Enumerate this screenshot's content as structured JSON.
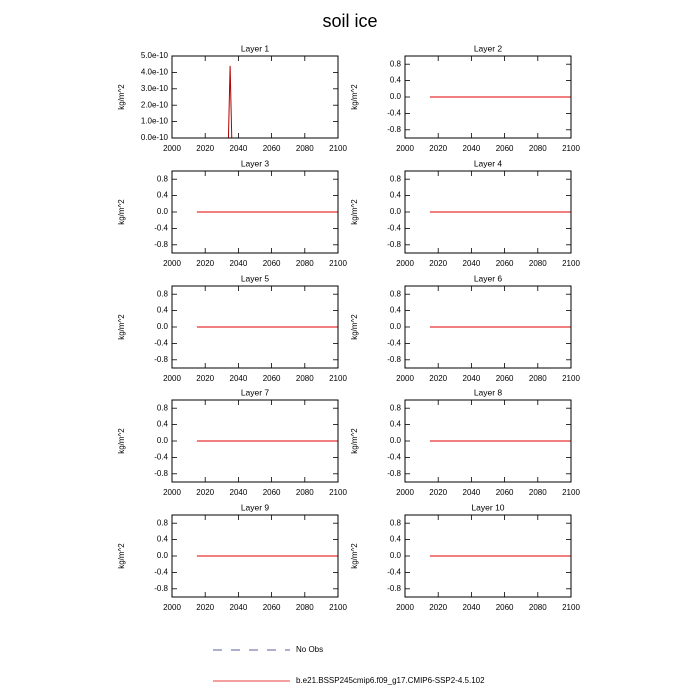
{
  "title": "soil ice",
  "legend": [
    {
      "name": "No Obs",
      "color": "#2a2a80",
      "style": "dashed"
    },
    {
      "name": "b.e21.BSSP245cmip6.f09_g17.CMIP6-SSP2-4.5.102",
      "color": "#e00000",
      "style": "solid"
    }
  ],
  "chart_data": [
    {
      "type": "line",
      "title": "Layer 1",
      "ylabel": "kg/m^2",
      "x": [
        2015,
        2034,
        2035,
        2036,
        2100
      ],
      "series": [
        {
          "color": "#b00000",
          "values": [
            0,
            0,
            4.4e-10,
            0,
            0
          ]
        }
      ],
      "xlim": [
        2000,
        2100
      ],
      "ylim": [
        0,
        5e-10
      ],
      "xticks": [
        2000,
        2020,
        2040,
        2060,
        2080,
        2100
      ],
      "yticks": [
        {
          "value": 0,
          "label": "0.0e-10"
        },
        {
          "value": 1e-10,
          "label": "1.0e-10"
        },
        {
          "value": 2e-10,
          "label": "2.0e-10"
        },
        {
          "value": 3e-10,
          "label": "3.0e-10"
        },
        {
          "value": 4e-10,
          "label": "4.0e-10"
        },
        {
          "value": 5e-10,
          "label": "5.0e-10"
        }
      ]
    },
    {
      "type": "line",
      "title": "Layer 2",
      "ylabel": "kg/m^2",
      "x": [
        2015,
        2100
      ],
      "series": [
        {
          "color": "#e00000",
          "values": [
            0,
            0
          ]
        }
      ],
      "xlim": [
        2000,
        2100
      ],
      "ylim": [
        -1,
        1
      ],
      "xticks": [
        2000,
        2020,
        2040,
        2060,
        2080,
        2100
      ],
      "yticks": [
        -0.8,
        -0.4,
        {
          "value": 0,
          "label": "0.0"
        },
        0.4,
        0.8
      ]
    },
    {
      "type": "line",
      "title": "Layer 3",
      "ylabel": "kg/m^2",
      "x": [
        2015,
        2100
      ],
      "series": [
        {
          "color": "#e00000",
          "values": [
            0,
            0
          ]
        }
      ],
      "xlim": [
        2000,
        2100
      ],
      "ylim": [
        -1,
        1
      ],
      "xticks": [
        2000,
        2020,
        2040,
        2060,
        2080,
        2100
      ],
      "yticks": [
        -0.8,
        -0.4,
        {
          "value": 0,
          "label": "0.0"
        },
        0.4,
        0.8
      ]
    },
    {
      "type": "line",
      "title": "Layer 4",
      "ylabel": "kg/m^2",
      "x": [
        2015,
        2100
      ],
      "series": [
        {
          "color": "#e00000",
          "values": [
            0,
            0
          ]
        }
      ],
      "xlim": [
        2000,
        2100
      ],
      "ylim": [
        -1,
        1
      ],
      "xticks": [
        2000,
        2020,
        2040,
        2060,
        2080,
        2100
      ],
      "yticks": [
        -0.8,
        -0.4,
        {
          "value": 0,
          "label": "0.0"
        },
        0.4,
        0.8
      ]
    },
    {
      "type": "line",
      "title": "Layer 5",
      "ylabel": "kg/m^2",
      "x": [
        2015,
        2100
      ],
      "series": [
        {
          "color": "#e00000",
          "values": [
            0,
            0
          ]
        }
      ],
      "xlim": [
        2000,
        2100
      ],
      "ylim": [
        -1,
        1
      ],
      "xticks": [
        2000,
        2020,
        2040,
        2060,
        2080,
        2100
      ],
      "yticks": [
        -0.8,
        -0.4,
        {
          "value": 0,
          "label": "0.0"
        },
        0.4,
        0.8
      ]
    },
    {
      "type": "line",
      "title": "Layer 6",
      "ylabel": "kg/m^2",
      "x": [
        2015,
        2100
      ],
      "series": [
        {
          "color": "#e00000",
          "values": [
            0,
            0
          ]
        }
      ],
      "xlim": [
        2000,
        2100
      ],
      "ylim": [
        -1,
        1
      ],
      "xticks": [
        2000,
        2020,
        2040,
        2060,
        2080,
        2100
      ],
      "yticks": [
        -0.8,
        -0.4,
        {
          "value": 0,
          "label": "0.0"
        },
        0.4,
        0.8
      ]
    },
    {
      "type": "line",
      "title": "Layer 7",
      "ylabel": "kg/m^2",
      "x": [
        2015,
        2100
      ],
      "series": [
        {
          "color": "#e00000",
          "values": [
            0,
            0
          ]
        }
      ],
      "xlim": [
        2000,
        2100
      ],
      "ylim": [
        -1,
        1
      ],
      "xticks": [
        2000,
        2020,
        2040,
        2060,
        2080,
        2100
      ],
      "yticks": [
        -0.8,
        -0.4,
        {
          "value": 0,
          "label": "0.0"
        },
        0.4,
        0.8
      ]
    },
    {
      "type": "line",
      "title": "Layer 8",
      "ylabel": "kg/m^2",
      "x": [
        2015,
        2100
      ],
      "series": [
        {
          "color": "#e00000",
          "values": [
            0,
            0
          ]
        }
      ],
      "xlim": [
        2000,
        2100
      ],
      "ylim": [
        -1,
        1
      ],
      "xticks": [
        2000,
        2020,
        2040,
        2060,
        2080,
        2100
      ],
      "yticks": [
        -0.8,
        -0.4,
        {
          "value": 0,
          "label": "0.0"
        },
        0.4,
        0.8
      ]
    },
    {
      "type": "line",
      "title": "Layer 9",
      "ylabel": "kg/m^2",
      "x": [
        2015,
        2100
      ],
      "series": [
        {
          "color": "#e00000",
          "values": [
            0,
            0
          ]
        }
      ],
      "xlim": [
        2000,
        2100
      ],
      "ylim": [
        -1,
        1
      ],
      "xticks": [
        2000,
        2020,
        2040,
        2060,
        2080,
        2100
      ],
      "yticks": [
        -0.8,
        -0.4,
        {
          "value": 0,
          "label": "0.0"
        },
        0.4,
        0.8
      ]
    },
    {
      "type": "line",
      "title": "Layer 10",
      "ylabel": "kg/m^2",
      "x": [
        2015,
        2100
      ],
      "series": [
        {
          "color": "#e00000",
          "values": [
            0,
            0
          ]
        }
      ],
      "xlim": [
        2000,
        2100
      ],
      "ylim": [
        -1,
        1
      ],
      "xticks": [
        2000,
        2020,
        2040,
        2060,
        2080,
        2100
      ],
      "yticks": [
        -0.8,
        -0.4,
        {
          "value": 0,
          "label": "0.0"
        },
        0.4,
        0.8
      ]
    }
  ]
}
